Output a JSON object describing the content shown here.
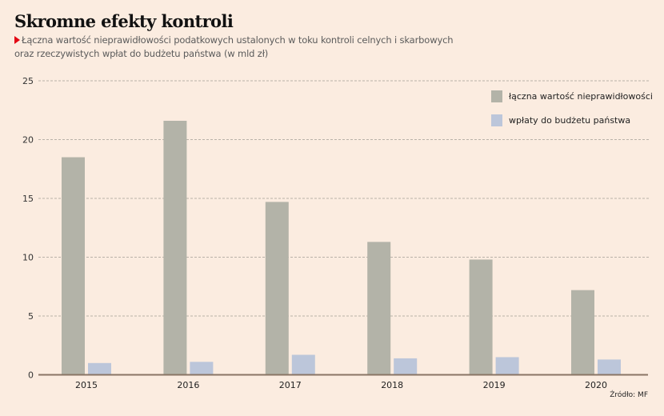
{
  "header": {
    "title": "Skromne efekty kontroli",
    "subtitle_line1": "Łączna wartość nieprawidłowości podatkowych ustalonych w toku kontroli celnych i skarbowych",
    "subtitle_line2": "oraz rzeczywistych wpłat do budżetu państwa (w mld zł)",
    "marker_color": "#e30613"
  },
  "source": "Źródło: MF",
  "chart_data": {
    "type": "bar",
    "title": "Skromne efekty kontroli",
    "subtitle": "Łączna wartość nieprawidłowości podatkowych ustalonych w toku kontroli celnych i skarbowych oraz rzeczywistych wpłat do budżetu państwa (w mld zł)",
    "xlabel": "",
    "ylabel": "",
    "categories": [
      "2015",
      "2016",
      "2017",
      "2018",
      "2019",
      "2020"
    ],
    "series": [
      {
        "name": "łączna wartość nieprawidłowości",
        "color": "#b3b3a8",
        "values": [
          18.5,
          21.6,
          14.7,
          11.3,
          9.8,
          7.2
        ]
      },
      {
        "name": "wpłaty do budżetu państwa",
        "color": "#bcc6da",
        "values": [
          1.0,
          1.1,
          1.7,
          1.4,
          1.5,
          1.3
        ]
      }
    ],
    "ylim": [
      0,
      25
    ],
    "yticks": [
      0,
      5,
      10,
      15,
      20,
      25
    ],
    "ytick_labels": [
      "0",
      "5",
      "10",
      "15",
      "20",
      "25"
    ],
    "grid": true,
    "legend_position": "top-right",
    "source": "Źródło: MF"
  }
}
